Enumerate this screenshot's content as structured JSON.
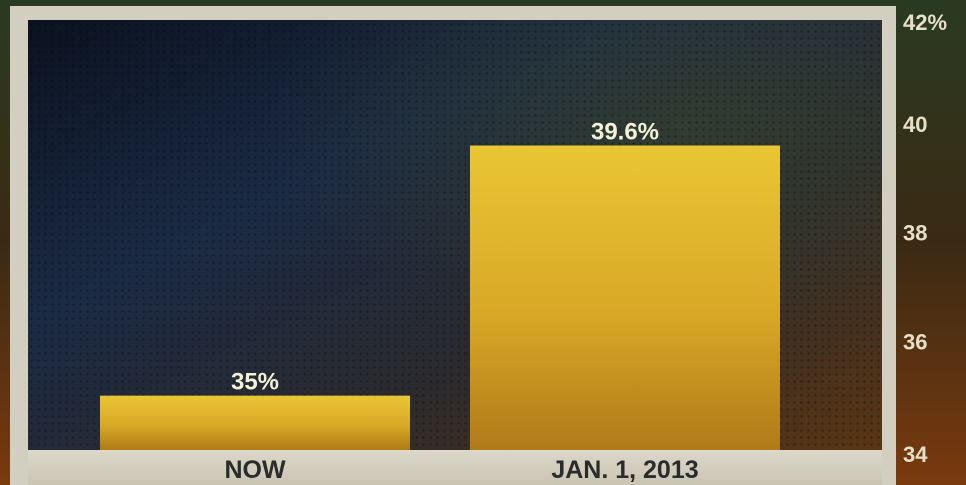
{
  "chart_data": {
    "type": "bar",
    "title": "",
    "xlabel": "",
    "ylabel": "",
    "categories": [
      "NOW",
      "JAN. 1, 2013"
    ],
    "values": [
      35,
      39.6
    ],
    "value_labels": [
      "35%",
      "39.6%"
    ],
    "ylim": [
      34,
      42
    ],
    "yticks": [
      34,
      36,
      38,
      40,
      42
    ],
    "ytick_labels": [
      "34",
      "36",
      "38",
      "40",
      "42%"
    ],
    "grid": false,
    "legend": "none",
    "colors": {
      "bar_top": "#e8c433",
      "bar_bottom": "#b47e1a",
      "panel_dark": "#0f1626",
      "panel_warm": "#4a2c10",
      "frame": "#d6d2c4"
    }
  }
}
